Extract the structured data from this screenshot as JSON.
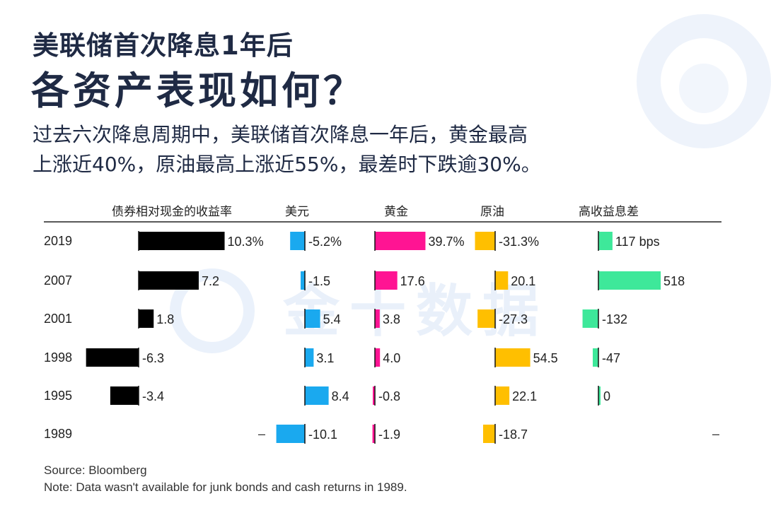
{
  "headline": {
    "line1": "美联储首次降息1年后",
    "line2": "各资产表现如何？"
  },
  "summary": {
    "line1": "过去六次降息周期中，美联储首次降息一年后，黄金最高",
    "line2": "上涨近40%，原油最高上涨近55%，最差时下跌逾30%。"
  },
  "watermark": "金十数据",
  "colors": {
    "bonds": "#000000",
    "usd": "#1aa9ef",
    "gold": "#ff1493",
    "oil": "#ffbf00",
    "spread": "#3ee89a",
    "title": "#1f2a44"
  },
  "chart_data": {
    "type": "bar",
    "categories": [
      "2019",
      "2007",
      "2001",
      "1998",
      "1995",
      "1989"
    ],
    "series": [
      {
        "name": "债券相对现金的收益率",
        "values": [
          10.3,
          7.2,
          1.8,
          -6.3,
          -3.4,
          null
        ],
        "labels": [
          "10.3%",
          "7.2",
          "1.8",
          "-6.3",
          "-3.4",
          "–"
        ]
      },
      {
        "name": "美元",
        "values": [
          -5.2,
          -1.5,
          5.4,
          3.1,
          8.4,
          -10.1
        ],
        "labels": [
          "-5.2%",
          "-1.5",
          "5.4",
          "3.1",
          "8.4",
          "-10.1"
        ]
      },
      {
        "name": "黄金",
        "values": [
          39.7,
          17.6,
          3.8,
          4.0,
          -0.8,
          -1.9
        ],
        "labels": [
          "39.7%",
          "17.6",
          "3.8",
          "4.0",
          "-0.8",
          "-1.9"
        ]
      },
      {
        "name": "原油",
        "values": [
          -31.3,
          20.1,
          -27.3,
          54.5,
          22.1,
          -18.7
        ],
        "labels": [
          "-31.3%",
          "20.1",
          "-27.3",
          "54.5",
          "22.1",
          "-18.7"
        ]
      },
      {
        "name": "高收益息差",
        "values": [
          117,
          518,
          -132,
          -47,
          0,
          null
        ],
        "labels": [
          "117 bps",
          "518",
          "-132",
          "-47",
          "0",
          "–"
        ]
      }
    ]
  },
  "source": "Source: Bloomberg",
  "note": "Note: Data wasn't available for junk bonds and cash returns in 1989."
}
